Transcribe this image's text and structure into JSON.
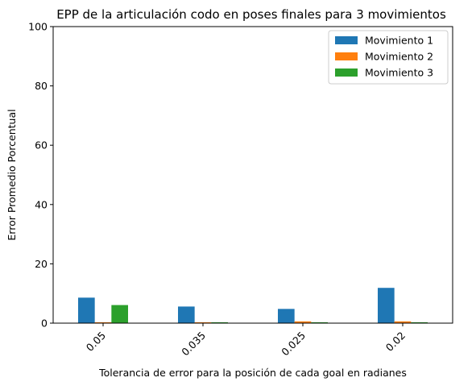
{
  "chart_data": {
    "type": "bar",
    "title": "EPP de la articulación codo en poses finales para 3 movimientos",
    "xlabel": "Tolerancia de error para la posición de cada goal en radianes",
    "ylabel": "Error Promedio Porcentual",
    "categories": [
      "0.05",
      "0.035",
      "0.025",
      "0.02"
    ],
    "ylim": [
      0,
      100
    ],
    "yticks": [
      "0",
      "20",
      "40",
      "60",
      "80",
      "100"
    ],
    "grid": false,
    "legend_position": "top-right",
    "series": [
      {
        "name": "Movimiento 1",
        "color": "#1f77b4",
        "values": [
          8.6,
          5.6,
          4.8,
          11.9
        ]
      },
      {
        "name": "Movimiento 2",
        "color": "#ff7f0e",
        "values": [
          0.3,
          0.3,
          0.6,
          0.6
        ]
      },
      {
        "name": "Movimiento 3",
        "color": "#2ca02c",
        "values": [
          6.1,
          0.3,
          0.3,
          0.3
        ]
      }
    ]
  }
}
